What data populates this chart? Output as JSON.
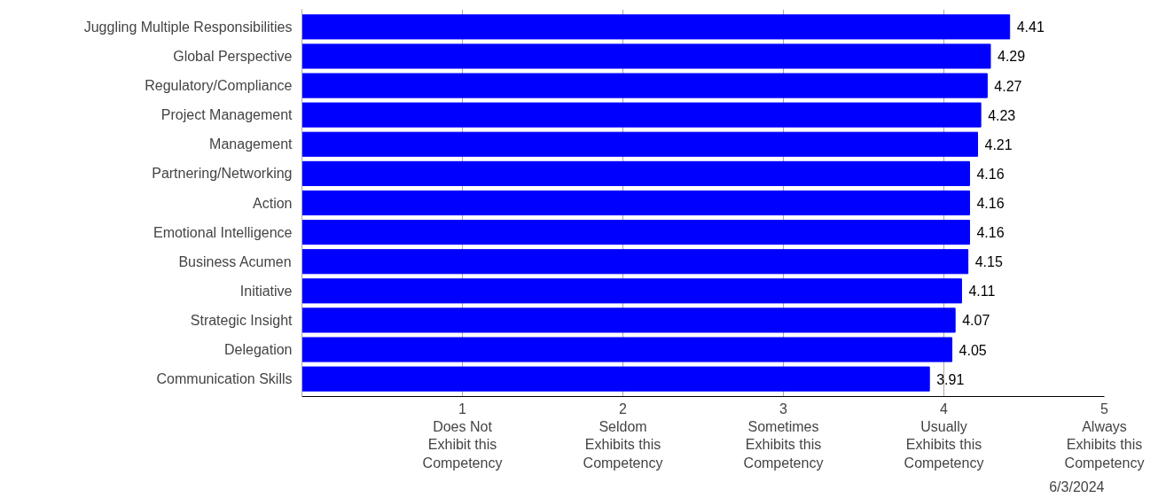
{
  "chart_data": {
    "type": "bar",
    "orientation": "horizontal",
    "categories": [
      "Juggling Multiple Responsibilities",
      "Global Perspective",
      "Regulatory/Compliance",
      "Project Management",
      "Management",
      "Partnering/Networking",
      "Action",
      "Emotional Intelligence",
      "Business Acumen",
      "Initiative",
      "Strategic Insight",
      "Delegation",
      "Communication Skills"
    ],
    "values": [
      4.41,
      4.29,
      4.27,
      4.23,
      4.21,
      4.16,
      4.16,
      4.16,
      4.15,
      4.11,
      4.07,
      4.05,
      3.91
    ],
    "color": "#0000ff",
    "data_labels": true,
    "grid": "x",
    "xlim": [
      0,
      5
    ],
    "xticks": [
      {
        "value": 0,
        "label": null
      },
      {
        "value": 1,
        "label": "1\nDoes Not\nExhibit this\nCompetency"
      },
      {
        "value": 2,
        "label": "2\nSeldom\nExhibits this\nCompetency"
      },
      {
        "value": 3,
        "label": "3\nSometimes\nExhibits this\nCompetency"
      },
      {
        "value": 4,
        "label": "4\nUsually\nExhibits this\nCompetency"
      },
      {
        "value": 5,
        "label": "5\nAlways\nExhibits this\nCompetency"
      }
    ],
    "annotations": [
      "6/3/2024"
    ]
  }
}
